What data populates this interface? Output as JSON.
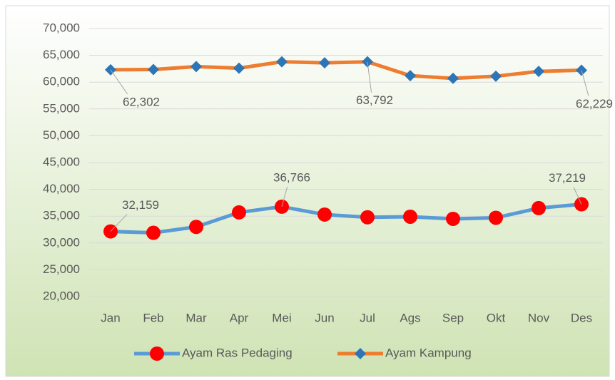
{
  "chart_data": {
    "type": "line",
    "categories": [
      "Jan",
      "Feb",
      "Mar",
      "Apr",
      "Mei",
      "Jun",
      "Jul",
      "Ags",
      "Sep",
      "Okt",
      "Nov",
      "Des"
    ],
    "series": [
      {
        "name": "Ayam Ras Pedaging",
        "color": "#5b9bd5",
        "marker_color": "#ff0000",
        "marker": "circle",
        "values": [
          32159,
          31900,
          33000,
          35700,
          36766,
          35300,
          34800,
          34900,
          34500,
          34700,
          36500,
          37219
        ],
        "value_labels": [
          "32,159",
          null,
          null,
          null,
          "36,766",
          null,
          null,
          null,
          null,
          null,
          null,
          "37,219"
        ]
      },
      {
        "name": "Ayam Kampung",
        "color": "#ed7d31",
        "marker_color": "#2e75b6",
        "marker": "diamond",
        "values": [
          62302,
          62350,
          62900,
          62600,
          63800,
          63600,
          63792,
          61200,
          60700,
          61100,
          62000,
          62229
        ],
        "value_labels": [
          "62,302",
          null,
          null,
          null,
          null,
          null,
          "63,792",
          null,
          null,
          null,
          null,
          "62,229"
        ]
      }
    ],
    "ylim": [
      20000,
      70000
    ],
    "yticks": [
      {
        "value": 20000,
        "label": "20,000"
      },
      {
        "value": 25000,
        "label": "25,000"
      },
      {
        "value": 30000,
        "label": "30,000"
      },
      {
        "value": 35000,
        "label": "35,000"
      },
      {
        "value": 40000,
        "label": "40,000"
      },
      {
        "value": 45000,
        "label": "45,000"
      },
      {
        "value": 50000,
        "label": "50,000"
      },
      {
        "value": 55000,
        "label": "55,000"
      },
      {
        "value": 60000,
        "label": "60,000"
      },
      {
        "value": 65000,
        "label": "65,000"
      },
      {
        "value": 70000,
        "label": "70,000"
      }
    ],
    "grid": true,
    "legend": "bottom"
  }
}
